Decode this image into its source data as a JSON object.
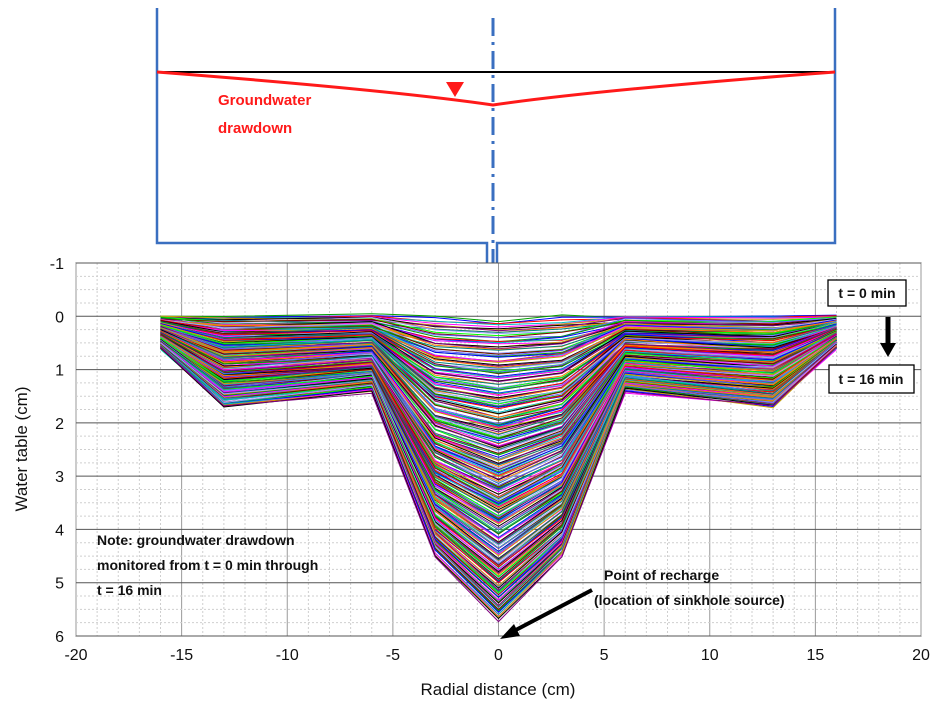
{
  "chart_data": {
    "type": "line",
    "xlabel": "Radial distance (cm)",
    "ylabel": "Water table (cm)",
    "xlim": [
      -20,
      20
    ],
    "ylim": [
      -1,
      6
    ],
    "y_inverted": true,
    "xticks": [
      "-20",
      "-15",
      "-10",
      "-5",
      "0",
      "5",
      "10",
      "15",
      "20"
    ],
    "yticks": [
      "-1",
      "0",
      "1",
      "2",
      "3",
      "4",
      "5",
      "6"
    ],
    "grid": true,
    "x": [
      -16,
      -13,
      -6,
      -3,
      0,
      3,
      6,
      13,
      16
    ],
    "series_envelope": {
      "t_start": [
        0.0,
        0.0,
        0.0,
        0.0,
        0.1,
        0.0,
        0.0,
        0.0,
        0.0
      ],
      "t_end": [
        0.6,
        1.7,
        1.4,
        4.5,
        5.7,
        4.5,
        1.4,
        1.7,
        0.6
      ]
    },
    "series_count_note": "many curves from t = 0 min to t = 16 min",
    "annotations": {
      "t0": "t = 0 min",
      "t16": "t = 16 min",
      "note_line1": "Note: groundwater drawdown",
      "note_line2": "monitored from t = 0 min through",
      "note_line3": "t = 16 min",
      "recharge_line1": "Point of recharge",
      "recharge_line2": "(location of sinkhole source)"
    }
  },
  "schematic": {
    "label_line1": "Groundwater",
    "label_line2": "drawdown",
    "drawdown_color": "#ff1a1a",
    "tank_color": "#3a6fc0"
  },
  "colors": [
    "#00a000",
    "#0000ff",
    "#ff0000",
    "#00c0c0",
    "#ff00ff",
    "#c8a000",
    "#000000",
    "#800080",
    "#ff8000",
    "#008080",
    "#a0a0ff",
    "#00ff00",
    "#800000",
    "#6060ff"
  ]
}
